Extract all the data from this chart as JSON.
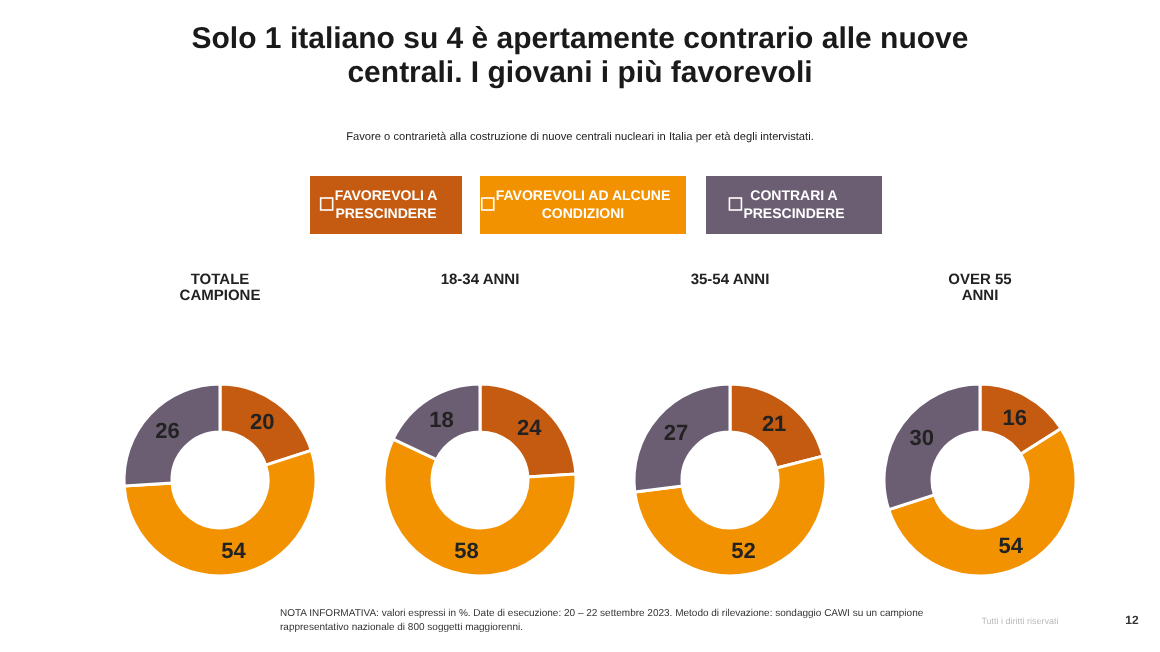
{
  "chart_data": [
    {
      "type": "other",
      "title": "Solo 1 italiano su 4 è apertamente contrario alle nuove centrali. I giovani i più favorevoli",
      "subtitle": "Favore o contrarietà alla costruzione di nuove centrali nucleari in Italia per età degli intervistati.",
      "annotations": [
        "NOTA INFORMATIVA: valori espressi in %. Date di esecuzione: 20 – 22 settembre 2023. Metodo di rilevazione: sondaggio CAWI su un campione rappresentativo nazionale di 800 soggetti maggiorenni.",
        "Tutti i diritti riservati",
        "12"
      ]
    },
    {
      "type": "donut",
      "title": "TOTALE CAMPIONE",
      "categories": [
        "FAVOREVOLI A PRESCINDERE",
        "FAVOREVOLI AD ALCUNE CONDIZIONI",
        "CONTRARI A PRESCINDERE"
      ],
      "values": [
        20,
        54,
        26
      ],
      "colors": [
        "#c55a11",
        "#f39200",
        "#6b5e73"
      ],
      "data_labels": true,
      "legend": "top"
    },
    {
      "type": "donut",
      "title": "18-34 ANNI",
      "categories": [
        null,
        null,
        null
      ],
      "values": [
        24,
        58,
        18
      ],
      "colors": [
        "#c55a11",
        "#f39200",
        "#6b5e73"
      ],
      "data_labels": true
    },
    {
      "type": "donut",
      "title": "35-54 ANNI",
      "categories": [
        null,
        null,
        null
      ],
      "values": [
        21,
        52,
        27
      ],
      "colors": [
        "#c55a11",
        "#f39200",
        "#6b5e73"
      ],
      "data_labels": true
    },
    {
      "type": "donut",
      "title": "OVER 55 ANNI",
      "categories": [
        null,
        null,
        null
      ],
      "values": [
        16,
        54,
        30
      ],
      "colors": [
        "#c55a11",
        "#f39200",
        "#6b5e73"
      ],
      "data_labels": true
    }
  ]
}
